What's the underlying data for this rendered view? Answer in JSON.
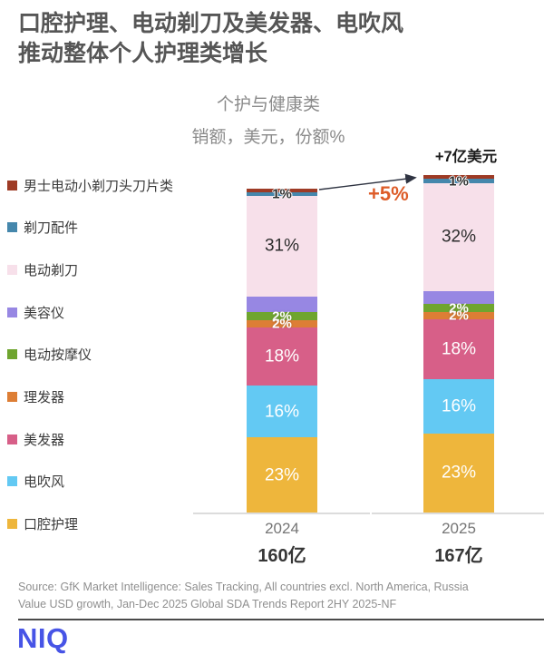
{
  "title": {
    "line1": "口腔护理、电动剃刀及美发器、电吹风",
    "line2": "推动整体个人护理类增长"
  },
  "subtitle": {
    "line1": "个护与健康类",
    "line2": "销额，美元，份额%"
  },
  "legend": {
    "items": [
      {
        "label": "男士电动小剃刀头刀片类",
        "color": "#9E3B25"
      },
      {
        "label": "剃刀配件",
        "color": "#4587AC"
      },
      {
        "label": "电动剃刀",
        "color": "#F7E0EA"
      },
      {
        "label": "美容仪",
        "color": "#9787E3"
      },
      {
        "label": "电动按摩仪",
        "color": "#6FA52F"
      },
      {
        "label": "理发器",
        "color": "#DD7E35"
      },
      {
        "label": "美发器",
        "color": "#D75F88"
      },
      {
        "label": "电吹风",
        "color": "#63C9F3"
      },
      {
        "label": "口腔护理",
        "color": "#EEB63C"
      }
    ]
  },
  "chart_data": {
    "type": "bar",
    "variant": "stacked-100pct",
    "title": "个护与健康类",
    "subtitle": "销额，美元，份额%",
    "categories": [
      "2024",
      "2025"
    ],
    "totals": [
      {
        "label": "160亿",
        "value": 160
      },
      {
        "label": "167亿",
        "value": 167
      }
    ],
    "segment_order_top_to_bottom": [
      "男士电动小剃刀头刀片类",
      "剃刀配件",
      "电动剃刀",
      "美容仪",
      "电动按摩仪",
      "理发器",
      "美发器",
      "电吹风",
      "口腔护理"
    ],
    "bars": [
      {
        "year": "2024",
        "total_label": "160亿",
        "segments": [
          {
            "name": "男士电动小剃刀头刀片类",
            "pct": 1.1,
            "label": "",
            "label_tone": "dark-halo"
          },
          {
            "name": "剃刀配件",
            "pct": 1.1,
            "label": "1%",
            "label_tone": "dark-halo"
          },
          {
            "name": "电动剃刀",
            "pct": 31.0,
            "label": "31%",
            "label_tone": "dark"
          },
          {
            "name": "美容仪",
            "pct": 5.0,
            "label": "",
            "label_tone": "white"
          },
          {
            "name": "电动按摩仪",
            "pct": 2.5,
            "label": "2%",
            "label_tone": "white-halo"
          },
          {
            "name": "理发器",
            "pct": 2.2,
            "label": "2%",
            "label_tone": "white-halo"
          },
          {
            "name": "美发器",
            "pct": 18.0,
            "label": "18%",
            "label_tone": "white"
          },
          {
            "name": "电吹风",
            "pct": 16.0,
            "label": "16%",
            "label_tone": "white"
          },
          {
            "name": "口腔护理",
            "pct": 23.1,
            "label": "23%",
            "label_tone": "white"
          }
        ]
      },
      {
        "year": "2025",
        "total_label": "167亿",
        "segments": [
          {
            "name": "男士电动小剃刀头刀片类",
            "pct": 1.1,
            "label": "",
            "label_tone": "dark-halo"
          },
          {
            "name": "剃刀配件",
            "pct": 1.3,
            "label": "1%",
            "label_tone": "dark-halo"
          },
          {
            "name": "电动剃刀",
            "pct": 32.0,
            "label": "32%",
            "label_tone": "dark"
          },
          {
            "name": "美容仪",
            "pct": 3.8,
            "label": "",
            "label_tone": "white"
          },
          {
            "name": "电动按摩仪",
            "pct": 2.4,
            "label": "2%",
            "label_tone": "white-halo"
          },
          {
            "name": "理发器",
            "pct": 2.1,
            "label": "2%",
            "label_tone": "white-halo"
          },
          {
            "name": "美发器",
            "pct": 17.9,
            "label": "18%",
            "label_tone": "white"
          },
          {
            "name": "电吹风",
            "pct": 16.0,
            "label": "16%",
            "label_tone": "white"
          },
          {
            "name": "口腔护理",
            "pct": 23.4,
            "label": "23%",
            "label_tone": "white"
          }
        ]
      }
    ],
    "annotations": {
      "delta": "+7亿美元",
      "growth": "+5%",
      "growth_color": "#DD5C28"
    },
    "legend_position": "left",
    "grid": false
  },
  "source": {
    "line1": "Source: GfK Market Intelligence: Sales Tracking, All countries excl. North America, Russia",
    "line2": "Value USD growth, Jan-Dec 2025 Global SDA Trends Report 2HY 2025-NF"
  },
  "logo": {
    "text": "NIQ",
    "color": "#4754E6"
  }
}
